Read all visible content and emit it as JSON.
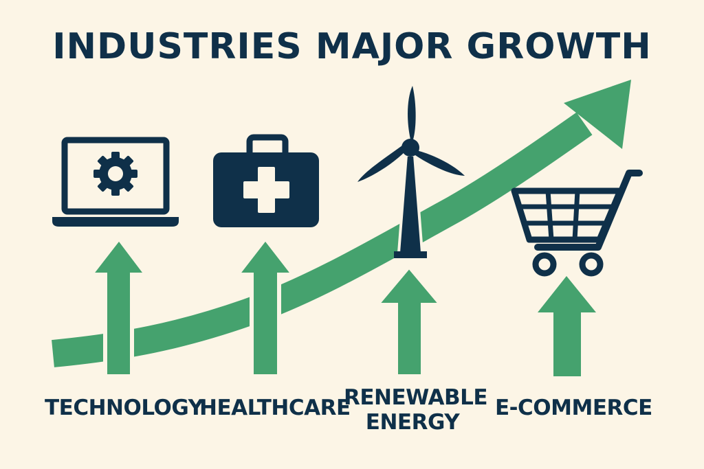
{
  "title": "INDUSTRIES MAJOR GROWTH",
  "colors": {
    "background": "#fcf5e6",
    "navy": "#0f3049",
    "green": "#45a26e"
  },
  "industries": [
    {
      "label_lines": [
        "TECHNOLOGY"
      ],
      "icon": "laptop-gear-icon"
    },
    {
      "label_lines": [
        "HEALTHCARE"
      ],
      "icon": "medical-kit-icon"
    },
    {
      "label_lines": [
        "RENEWABLE",
        "ENERGY"
      ],
      "icon": "wind-turbine-icon"
    },
    {
      "label_lines": [
        "E-COMMERCE"
      ],
      "icon": "shopping-cart-icon"
    }
  ]
}
